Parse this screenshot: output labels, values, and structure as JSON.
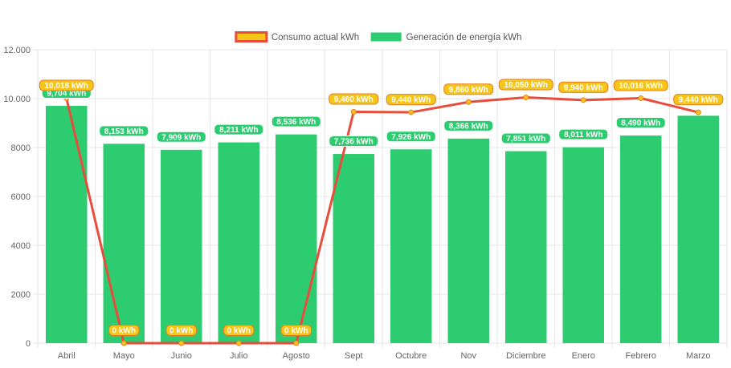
{
  "chart_data": {
    "type": "bar",
    "categories": [
      "Abril",
      "Mayo",
      "Junio",
      "Julio",
      "Agosto",
      "Sept",
      "Octubre",
      "Nov",
      "Diciembre",
      "Enero",
      "Febrero",
      "Marzo"
    ],
    "ylim": [
      0,
      12000
    ],
    "yticks": [
      0,
      2000,
      4000,
      6000,
      8000,
      10000,
      12000
    ],
    "ytick_labels": [
      "0",
      "2000",
      "4000",
      "6000",
      "8000",
      "10.000",
      "12.000"
    ],
    "grid": true,
    "legend_position": "top",
    "series": [
      {
        "name": "Consumo actual kWh",
        "type": "line",
        "color": "#e74c3c",
        "point_fill": "#f5c518",
        "values": [
          10018,
          0,
          0,
          0,
          0,
          9460,
          9440,
          9860,
          10050,
          9940,
          10016,
          9440
        ],
        "labels": [
          "10,018 kWh",
          "0 kWh",
          "0 kWh",
          "0 kWh",
          "0 kWh",
          "9,460 kWh",
          "9,440 kWh",
          "9,860 kWh",
          "10,050 kWh",
          "9,940 kWh",
          "10,016 kWh",
          "9,440 kWh"
        ]
      },
      {
        "name": "Generación de energía kWh",
        "type": "bar",
        "color": "#2ecc71",
        "values": [
          9704,
          8153,
          7909,
          8211,
          8536,
          7736,
          7926,
          8366,
          7851,
          8011,
          8490,
          9300
        ],
        "labels": [
          "9,704 kWh",
          "8,153 kWh",
          "7,909 kWh",
          "8,211 kWh",
          "8,536 kWh",
          "7,736 kWh",
          "7,926 kWh",
          "8,366 kWh",
          "7,851 kWh",
          "8,011 kWh",
          "8,490 kWh",
          ""
        ]
      }
    ]
  }
}
